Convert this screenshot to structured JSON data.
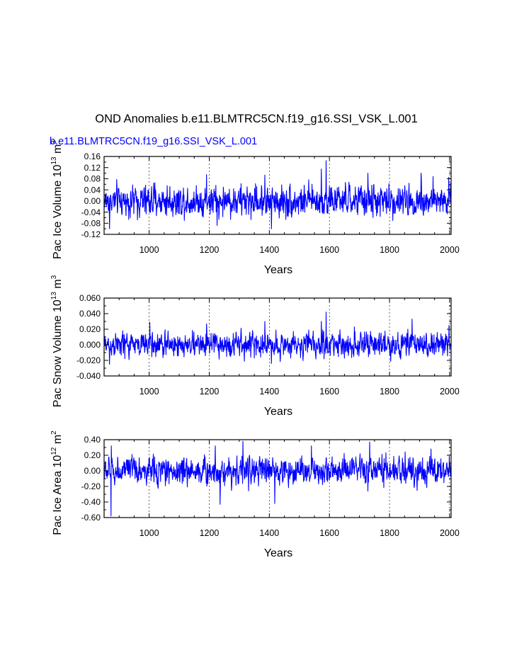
{
  "page": {
    "title": "OND Anomalies b.e11.BLMTRC5CN.f19_g16.SSI_VSK_L.001",
    "subtitle": "b.e11.BLMTRC5CN.f19_g16.SSI_VSK_L.001",
    "subtitle_color": "#0000ff",
    "line_color": "#0000ff",
    "axis_color": "#000000",
    "grid_color": "#000000"
  },
  "chart_data": [
    {
      "type": "line",
      "title": "",
      "xlabel": "Years",
      "ylabel": "Pac Ice Volume 10¹³ m³",
      "ylabel_parts": {
        "base": "Pac Ice Volume 10",
        "sup1": "13",
        "unit": " m",
        "sup2": "3"
      },
      "xlim": [
        850,
        2005
      ],
      "ylim": [
        -0.12,
        0.16
      ],
      "xticks": [
        1000,
        1200,
        1400,
        1600,
        1800,
        2000
      ],
      "xtick_labels": [
        "1000",
        "1200",
        "1400",
        "1600",
        "1800",
        "2000"
      ],
      "yticks": [
        -0.12,
        -0.08,
        -0.04,
        0.0,
        0.04,
        0.08,
        0.12,
        0.16
      ],
      "ytick_labels": [
        "-0.12",
        "-0.08",
        "-0.04",
        "0.00",
        "0.04",
        "0.08",
        "0.12",
        "0.16"
      ],
      "yticks_minor": [
        -0.1,
        -0.06,
        -0.02,
        0.02,
        0.06,
        0.1,
        0.14
      ],
      "grid": "vertical dashed at major x ticks",
      "series": [
        {
          "color": "#0000ff",
          "x_start": 850,
          "x_end": 2005,
          "sampling_note": "annual values, key extremes read from chart",
          "spread": 0.032,
          "extremes": [
            {
              "x": 868,
              "y": -0.1
            },
            {
              "x": 1191,
              "y": 0.095
            },
            {
              "x": 1226,
              "y": -0.088
            },
            {
              "x": 1385,
              "y": 0.093
            },
            {
              "x": 1407,
              "y": -0.1
            },
            {
              "x": 1589,
              "y": 0.145
            },
            {
              "x": 1573,
              "y": 0.115
            },
            {
              "x": 1728,
              "y": 0.1
            },
            {
              "x": 1905,
              "y": 0.1
            },
            {
              "x": 1945,
              "y": 0.088
            },
            {
              "x": 1997,
              "y": 0.085
            }
          ]
        }
      ]
    },
    {
      "type": "line",
      "title": "",
      "xlabel": "Years",
      "ylabel": "Pac Snow Volume 10¹³ m³",
      "ylabel_parts": {
        "base": "Pac Snow Volume 10",
        "sup1": "13",
        "unit": " m",
        "sup2": "3"
      },
      "xlim": [
        850,
        2005
      ],
      "ylim": [
        -0.04,
        0.06
      ],
      "xticks": [
        1000,
        1200,
        1400,
        1600,
        1800,
        2000
      ],
      "xtick_labels": [
        "1000",
        "1200",
        "1400",
        "1600",
        "1800",
        "2000"
      ],
      "yticks": [
        -0.04,
        -0.02,
        0.0,
        0.02,
        0.04,
        0.06
      ],
      "ytick_labels": [
        "-0.040",
        "-0.020",
        "0.000",
        "0.020",
        "0.040",
        "0.060"
      ],
      "yticks_minor": [
        -0.03,
        -0.01,
        0.01,
        0.03,
        0.05
      ],
      "grid": "vertical dashed at major x ticks",
      "series": [
        {
          "color": "#0000ff",
          "x_start": 850,
          "x_end": 2005,
          "sampling_note": "annual values, key extremes read from chart",
          "spread": 0.009,
          "extremes": [
            {
              "x": 868,
              "y": -0.025
            },
            {
              "x": 1002,
              "y": 0.029
            },
            {
              "x": 1191,
              "y": 0.027
            },
            {
              "x": 1385,
              "y": 0.03
            },
            {
              "x": 1407,
              "y": -0.024
            },
            {
              "x": 1589,
              "y": 0.042
            },
            {
              "x": 1573,
              "y": 0.03
            },
            {
              "x": 1683,
              "y": 0.023
            },
            {
              "x": 1875,
              "y": 0.033
            },
            {
              "x": 1998,
              "y": 0.025
            }
          ]
        }
      ]
    },
    {
      "type": "line",
      "title": "",
      "xlabel": "Years",
      "ylabel": "Pac Ice Area 10¹² m²",
      "ylabel_parts": {
        "base": "Pac Ice Area 10",
        "sup1": "12",
        "unit": " m",
        "sup2": "2"
      },
      "xlim": [
        850,
        2005
      ],
      "ylim": [
        -0.6,
        0.4
      ],
      "xticks": [
        1000,
        1200,
        1400,
        1600,
        1800,
        2000
      ],
      "xtick_labels": [
        "1000",
        "1200",
        "1400",
        "1600",
        "1800",
        "2000"
      ],
      "yticks": [
        -0.6,
        -0.4,
        -0.2,
        0.0,
        0.2,
        0.4
      ],
      "ytick_labels": [
        "-0.60",
        "-0.40",
        "-0.20",
        "0.00",
        "0.20",
        "0.40"
      ],
      "yticks_minor": [
        -0.5,
        -0.3,
        -0.1,
        0.1,
        0.3
      ],
      "grid": "vertical dashed at major x ticks",
      "series": [
        {
          "color": "#0000ff",
          "x_start": 850,
          "x_end": 2005,
          "sampling_note": "annual values, key extremes read from chart",
          "spread": 0.1,
          "extremes": [
            {
              "x": 873,
              "y": -0.58
            },
            {
              "x": 874,
              "y": 0.32
            },
            {
              "x": 1220,
              "y": 0.32
            },
            {
              "x": 1236,
              "y": -0.43
            },
            {
              "x": 1312,
              "y": 0.38
            },
            {
              "x": 1418,
              "y": -0.42
            },
            {
              "x": 1540,
              "y": 0.32
            },
            {
              "x": 1734,
              "y": 0.37
            },
            {
              "x": 1728,
              "y": -0.26
            },
            {
              "x": 1938,
              "y": 0.28
            }
          ]
        }
      ]
    }
  ]
}
